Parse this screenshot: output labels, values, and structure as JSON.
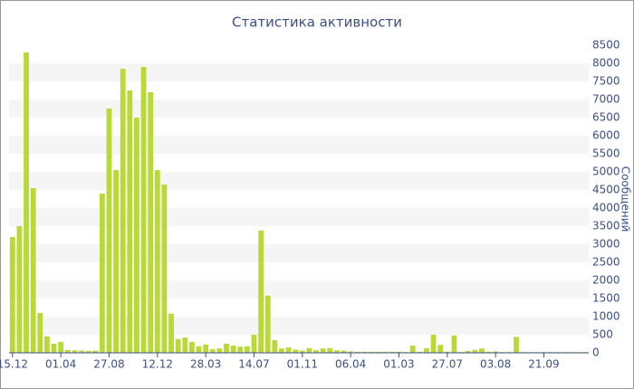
{
  "chart_data": {
    "type": "bar",
    "title": "Статистика активности",
    "y_axis_label": "Сообщений",
    "categories": [
      "15.12",
      null,
      null,
      null,
      null,
      null,
      null,
      "01.04",
      null,
      null,
      null,
      null,
      null,
      null,
      "27.08",
      null,
      null,
      null,
      null,
      null,
      null,
      "12.12",
      null,
      null,
      null,
      null,
      null,
      null,
      "28.03",
      null,
      null,
      null,
      null,
      null,
      null,
      "14.07",
      null,
      null,
      null,
      null,
      null,
      null,
      "01.11",
      null,
      null,
      null,
      null,
      null,
      null,
      "06.04",
      null,
      null,
      null,
      null,
      null,
      null,
      "01.03",
      null,
      null,
      null,
      null,
      null,
      null,
      "27.07",
      null,
      null,
      null,
      null,
      null,
      null,
      "03.08",
      null,
      null,
      null,
      null,
      null,
      null,
      "21.09",
      null,
      null,
      null,
      null,
      null,
      null
    ],
    "values": [
      3200,
      3500,
      8300,
      4550,
      1100,
      450,
      250,
      300,
      80,
      70,
      60,
      50,
      60,
      4400,
      6750,
      5050,
      7850,
      7250,
      6500,
      7900,
      7200,
      5050,
      4650,
      1080,
      380,
      420,
      300,
      180,
      230,
      100,
      120,
      250,
      200,
      170,
      180,
      500,
      3380,
      1580,
      350,
      120,
      150,
      90,
      60,
      130,
      70,
      120,
      130,
      70,
      60,
      40,
      30,
      30,
      30,
      30,
      30,
      30,
      30,
      20,
      200,
      30,
      130,
      500,
      220,
      30,
      480,
      20,
      50,
      80,
      120,
      30,
      40,
      20,
      20,
      440,
      20,
      20,
      20,
      20,
      20,
      20,
      20,
      20,
      20,
      20
    ],
    "color": "#b8d936",
    "ylim": [
      0,
      8500
    ],
    "yticks": [
      0,
      500,
      1000,
      1500,
      2000,
      2500,
      3000,
      3500,
      4000,
      4500,
      5000,
      5500,
      6000,
      6500,
      7000,
      7500,
      8000,
      8500
    ],
    "grid": true,
    "y_axis_side": "right"
  }
}
